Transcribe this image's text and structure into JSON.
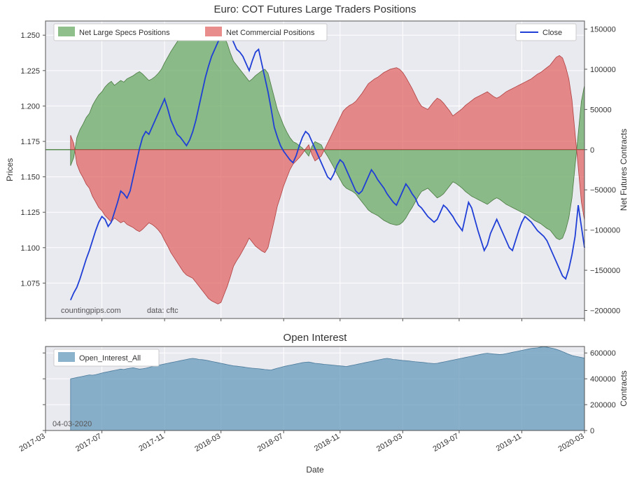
{
  "main_chart": {
    "title": "Euro: COT Futures Large Traders Positions",
    "ylabel_left": "Prices",
    "ylabel_right": "Net Futures Contracts",
    "left_axis": {
      "min": 1.05,
      "max": 1.26,
      "ticks": [
        1.075,
        1.1,
        1.125,
        1.15,
        1.175,
        1.2,
        1.225,
        1.25
      ]
    },
    "right_axis": {
      "min": -210000,
      "max": 160000,
      "ticks": [
        -200000,
        -150000,
        -100000,
        -50000,
        0,
        50000,
        100000,
        150000
      ]
    },
    "x_axis": {
      "min_idx": 0,
      "max_idx": 172,
      "data_start_idx": 8,
      "tick_idx": [
        0,
        18,
        38,
        56,
        76,
        94,
        114,
        132,
        152,
        172
      ],
      "tick_labels": [
        "2017-03",
        "2017-07",
        "2017-11",
        "2018-03",
        "2018-07",
        "2018-11",
        "2019-03",
        "2019-07",
        "2019-11",
        "2020-03"
      ]
    },
    "plot_bg": "#e9e9f0",
    "grid_color": "#ffffff",
    "series": {
      "specs": {
        "label": "Net Large Specs Positions",
        "fill": "#6aaa64",
        "alpha": 0.75,
        "values": [
          -20000,
          -10000,
          15000,
          25000,
          32000,
          40000,
          45000,
          55000,
          62000,
          68000,
          72000,
          78000,
          82000,
          85000,
          80000,
          83000,
          86000,
          84000,
          88000,
          90000,
          92000,
          95000,
          97000,
          94000,
          90000,
          86000,
          88000,
          91000,
          95000,
          100000,
          108000,
          115000,
          122000,
          128000,
          134000,
          140000,
          145000,
          148000,
          150000,
          148000,
          146000,
          145000,
          148000,
          150000,
          151000,
          149000,
          147000,
          150000,
          148000,
          140000,
          132000,
          120000,
          110000,
          105000,
          100000,
          95000,
          90000,
          85000,
          88000,
          92000,
          95000,
          98000,
          100000,
          95000,
          80000,
          65000,
          50000,
          40000,
          30000,
          22000,
          15000,
          10000,
          8000,
          5000,
          2000,
          -3000,
          -8000,
          4000,
          10000,
          8000,
          6000,
          -2000,
          -8000,
          -15000,
          -22000,
          -30000,
          -37000,
          -44000,
          -48000,
          -50000,
          -52000,
          -55000,
          -60000,
          -65000,
          -70000,
          -75000,
          -78000,
          -80000,
          -82000,
          -85000,
          -88000,
          -90000,
          -92000,
          -93000,
          -94000,
          -93000,
          -90000,
          -85000,
          -78000,
          -72000,
          -65000,
          -58000,
          -52000,
          -50000,
          -48000,
          -52000,
          -56000,
          -60000,
          -58000,
          -55000,
          -50000,
          -45000,
          -40000,
          -42000,
          -45000,
          -48000,
          -52000,
          -55000,
          -58000,
          -60000,
          -62000,
          -64000,
          -66000,
          -68000,
          -65000,
          -62000,
          -60000,
          -62000,
          -65000,
          -68000,
          -70000,
          -72000,
          -74000,
          -76000,
          -78000,
          -80000,
          -82000,
          -85000,
          -88000,
          -90000,
          -92000,
          -95000,
          -98000,
          -100000,
          -105000,
          -110000,
          -112000,
          -110000,
          -100000,
          -85000,
          -60000,
          -20000,
          20000,
          60000,
          80000
        ]
      },
      "commercials": {
        "label": "Net Commercial Positions",
        "fill": "#e06666",
        "alpha": 0.75,
        "values": [
          18000,
          8000,
          -18000,
          -28000,
          -35000,
          -43000,
          -48000,
          -58000,
          -65000,
          -72000,
          -76000,
          -82000,
          -86000,
          -90000,
          -85000,
          -88000,
          -91000,
          -89000,
          -93000,
          -95000,
          -97000,
          -100000,
          -102000,
          -99000,
          -95000,
          -91000,
          -93000,
          -96000,
          -100000,
          -105000,
          -113000,
          -120000,
          -128000,
          -134000,
          -140000,
          -146000,
          -152000,
          -156000,
          -158000,
          -160000,
          -165000,
          -170000,
          -175000,
          -180000,
          -185000,
          -188000,
          -190000,
          -192000,
          -190000,
          -180000,
          -170000,
          -158000,
          -145000,
          -138000,
          -132000,
          -125000,
          -118000,
          -110000,
          -115000,
          -120000,
          -123000,
          -126000,
          -128000,
          -122000,
          -105000,
          -88000,
          -70000,
          -58000,
          -45000,
          -35000,
          -25000,
          -18000,
          -14000,
          -10000,
          -5000,
          1000,
          6000,
          -6000,
          -14000,
          -11000,
          -8000,
          0,
          8000,
          16000,
          24000,
          32000,
          40000,
          48000,
          52000,
          55000,
          57000,
          60000,
          65000,
          70000,
          76000,
          82000,
          85000,
          88000,
          90000,
          93000,
          96000,
          98000,
          100000,
          101000,
          102000,
          100000,
          96000,
          90000,
          83000,
          76000,
          68000,
          60000,
          54000,
          52000,
          50000,
          55000,
          60000,
          64000,
          62000,
          58000,
          53000,
          48000,
          42000,
          45000,
          48000,
          51000,
          55000,
          58000,
          61000,
          64000,
          66000,
          68000,
          70000,
          72000,
          69000,
          66000,
          64000,
          66000,
          69000,
          72000,
          74000,
          76000,
          78000,
          80000,
          82000,
          84000,
          86000,
          88000,
          91000,
          94000,
          96000,
          99000,
          102000,
          105000,
          110000,
          115000,
          117000,
          114000,
          103000,
          88000,
          62000,
          20000,
          -22000,
          -65000,
          -88000
        ]
      },
      "close": {
        "label": "Close",
        "stroke": "#1f3fd6",
        "width": 1.8,
        "values": [
          1.063,
          1.068,
          1.072,
          1.078,
          1.085,
          1.092,
          1.098,
          1.105,
          1.112,
          1.118,
          1.122,
          1.12,
          1.115,
          1.118,
          1.125,
          1.132,
          1.14,
          1.138,
          1.135,
          1.14,
          1.15,
          1.16,
          1.17,
          1.178,
          1.182,
          1.18,
          1.185,
          1.19,
          1.195,
          1.2,
          1.205,
          1.198,
          1.19,
          1.185,
          1.18,
          1.178,
          1.175,
          1.172,
          1.176,
          1.182,
          1.19,
          1.2,
          1.21,
          1.22,
          1.228,
          1.235,
          1.24,
          1.245,
          1.25,
          1.252,
          1.255,
          1.25,
          1.245,
          1.24,
          1.238,
          1.235,
          1.23,
          1.225,
          1.232,
          1.238,
          1.24,
          1.23,
          1.22,
          1.21,
          1.198,
          1.185,
          1.178,
          1.172,
          1.168,
          1.165,
          1.162,
          1.16,
          1.165,
          1.172,
          1.178,
          1.182,
          1.18,
          1.175,
          1.17,
          1.165,
          1.16,
          1.155,
          1.15,
          1.148,
          1.152,
          1.158,
          1.162,
          1.16,
          1.155,
          1.15,
          1.145,
          1.14,
          1.138,
          1.14,
          1.145,
          1.15,
          1.155,
          1.152,
          1.148,
          1.145,
          1.142,
          1.138,
          1.135,
          1.132,
          1.13,
          1.135,
          1.14,
          1.145,
          1.142,
          1.138,
          1.135,
          1.13,
          1.128,
          1.125,
          1.122,
          1.12,
          1.118,
          1.12,
          1.125,
          1.13,
          1.128,
          1.125,
          1.122,
          1.118,
          1.115,
          1.112,
          1.122,
          1.132,
          1.128,
          1.12,
          1.112,
          1.105,
          1.098,
          1.102,
          1.11,
          1.115,
          1.12,
          1.115,
          1.11,
          1.105,
          1.1,
          1.098,
          1.105,
          1.112,
          1.118,
          1.122,
          1.12,
          1.118,
          1.115,
          1.112,
          1.11,
          1.108,
          1.105,
          1.1,
          1.095,
          1.09,
          1.085,
          1.08,
          1.078,
          1.085,
          1.095,
          1.108,
          1.13,
          1.115,
          1.1
        ]
      }
    },
    "watermark_left": "countingpips.com",
    "watermark_right": "data: cftc",
    "legend_close": "Close"
  },
  "oi_chart": {
    "title": "Open Interest",
    "ylabel_right": "Contracts",
    "xlabel": "Date",
    "left_axis": {
      "min": 0,
      "max": 650000,
      "ticks": [
        0,
        200000,
        400000,
        600000
      ]
    },
    "plot_bg": "#e9e9f0",
    "series": {
      "label": "Open_Interest_All",
      "fill": "#6699bb",
      "alpha": 0.75,
      "values": [
        400000,
        405000,
        410000,
        415000,
        420000,
        425000,
        430000,
        428000,
        432000,
        438000,
        445000,
        450000,
        455000,
        460000,
        465000,
        470000,
        475000,
        472000,
        478000,
        482000,
        485000,
        480000,
        475000,
        478000,
        482000,
        488000,
        495000,
        500000,
        505000,
        510000,
        515000,
        520000,
        525000,
        530000,
        535000,
        540000,
        545000,
        550000,
        555000,
        558000,
        555000,
        550000,
        548000,
        545000,
        540000,
        535000,
        530000,
        525000,
        520000,
        515000,
        510000,
        505000,
        500000,
        498000,
        495000,
        492000,
        488000,
        485000,
        482000,
        480000,
        478000,
        475000,
        472000,
        470000,
        468000,
        475000,
        482000,
        488000,
        495000,
        500000,
        505000,
        510000,
        515000,
        520000,
        525000,
        528000,
        530000,
        525000,
        520000,
        518000,
        515000,
        512000,
        510000,
        508000,
        505000,
        502000,
        500000,
        498000,
        495000,
        500000,
        505000,
        510000,
        515000,
        520000,
        525000,
        530000,
        535000,
        540000,
        545000,
        550000,
        555000,
        558000,
        555000,
        550000,
        548000,
        545000,
        542000,
        540000,
        538000,
        535000,
        532000,
        530000,
        528000,
        525000,
        522000,
        520000,
        518000,
        520000,
        525000,
        530000,
        535000,
        540000,
        545000,
        550000,
        555000,
        560000,
        565000,
        570000,
        575000,
        580000,
        585000,
        590000,
        595000,
        598000,
        595000,
        592000,
        590000,
        588000,
        590000,
        595000,
        600000,
        605000,
        610000,
        615000,
        620000,
        625000,
        630000,
        635000,
        638000,
        640000,
        645000,
        648000,
        645000,
        640000,
        635000,
        628000,
        620000,
        610000,
        600000,
        590000,
        580000,
        575000,
        570000,
        565000,
        560000
      ]
    },
    "date_note": "04-03-2020"
  }
}
